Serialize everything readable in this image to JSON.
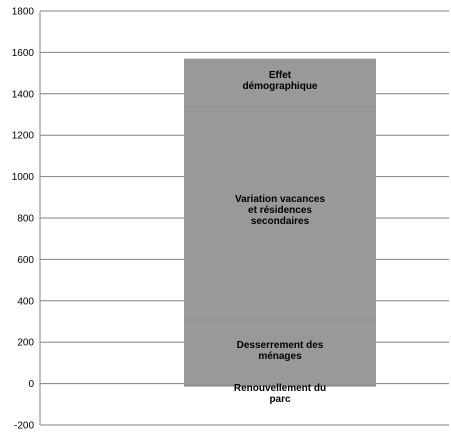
{
  "chart_data": {
    "type": "bar",
    "stacked": true,
    "grid": true,
    "legend": "none",
    "ylim": [
      -200,
      1800
    ],
    "yticks": [
      "1800",
      "1600",
      "1400",
      "1200",
      "1000",
      "800",
      "600",
      "400",
      "200",
      "0",
      "-200"
    ],
    "bar_color": "#999999",
    "series": [
      {
        "name": "Renouvellement du parc",
        "values": [
          -10
        ]
      },
      {
        "name": "Desserrement des ménages",
        "values": [
          310
        ]
      },
      {
        "name": "Variation vacances et résidences secondaires",
        "values": [
          1030
        ]
      },
      {
        "name": "Effet démographique",
        "values": [
          230
        ]
      }
    ],
    "segment_labels": [
      {
        "lines": [
          "Renouvellement du",
          "parc"
        ]
      },
      {
        "lines": [
          "Desserrement des",
          "ménages"
        ]
      },
      {
        "lines": [
          "Variation vacances",
          "et résidences",
          "secondaires"
        ]
      },
      {
        "lines": [
          "Effet",
          "démographique"
        ]
      }
    ]
  }
}
